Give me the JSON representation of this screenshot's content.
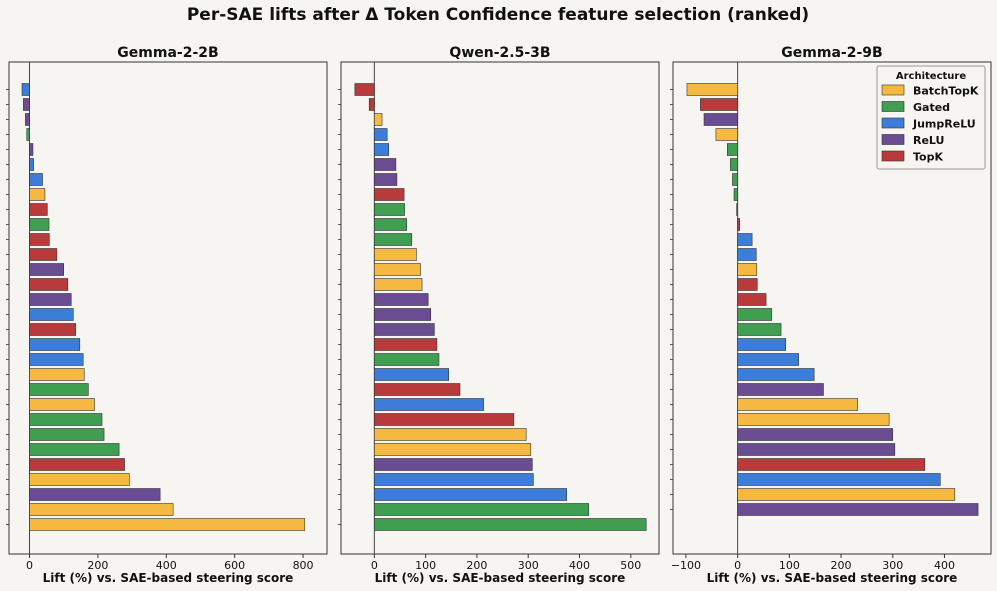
{
  "title": "Per-SAE lifts after Δ Token Confidence feature selection (ranked)",
  "colors": {
    "BatchTopK": "#f5b942",
    "Gated": "#3f9e4f",
    "JumpReLU": "#3b7dd8",
    "ReLU": "#6a4c93",
    "TopK": "#b83a3a"
  },
  "legend": {
    "title": "Architecture",
    "location": "top-right",
    "entries": [
      "BatchTopK",
      "Gated",
      "JumpReLU",
      "ReLU",
      "TopK"
    ]
  },
  "chart_data": [
    {
      "type": "bar",
      "orientation": "horizontal",
      "title": "Gemma-2-2B",
      "xlabel": "Lift (%) vs. SAE-based steering score",
      "xlim": [
        -60,
        870
      ],
      "xticks": [
        0,
        200,
        400,
        600,
        800
      ],
      "bars": [
        {
          "arch": "JumpReLU",
          "value": -22
        },
        {
          "arch": "ReLU",
          "value": -18
        },
        {
          "arch": "ReLU",
          "value": -12
        },
        {
          "arch": "Gated",
          "value": -8
        },
        {
          "arch": "ReLU",
          "value": 10
        },
        {
          "arch": "JumpReLU",
          "value": 12
        },
        {
          "arch": "JumpReLU",
          "value": 38
        },
        {
          "arch": "BatchTopK",
          "value": 45
        },
        {
          "arch": "TopK",
          "value": 52
        },
        {
          "arch": "Gated",
          "value": 57
        },
        {
          "arch": "TopK",
          "value": 58
        },
        {
          "arch": "TopK",
          "value": 80
        },
        {
          "arch": "ReLU",
          "value": 100
        },
        {
          "arch": "TopK",
          "value": 112
        },
        {
          "arch": "ReLU",
          "value": 122
        },
        {
          "arch": "JumpReLU",
          "value": 128
        },
        {
          "arch": "TopK",
          "value": 135
        },
        {
          "arch": "JumpReLU",
          "value": 147
        },
        {
          "arch": "JumpReLU",
          "value": 157
        },
        {
          "arch": "BatchTopK",
          "value": 160
        },
        {
          "arch": "Gated",
          "value": 172
        },
        {
          "arch": "BatchTopK",
          "value": 190
        },
        {
          "arch": "Gated",
          "value": 212
        },
        {
          "arch": "Gated",
          "value": 218
        },
        {
          "arch": "Gated",
          "value": 262
        },
        {
          "arch": "TopK",
          "value": 278
        },
        {
          "arch": "BatchTopK",
          "value": 292
        },
        {
          "arch": "ReLU",
          "value": 382
        },
        {
          "arch": "BatchTopK",
          "value": 420
        },
        {
          "arch": "BatchTopK",
          "value": 805
        }
      ]
    },
    {
      "type": "bar",
      "orientation": "horizontal",
      "title": "Qwen-2.5-3B",
      "xlabel": "Lift (%) vs. SAE-based steering score",
      "xlim": [
        -65,
        555
      ],
      "xticks": [
        0,
        100,
        200,
        300,
        400,
        500
      ],
      "bars": [
        {
          "arch": "TopK",
          "value": -38
        },
        {
          "arch": "TopK",
          "value": -10
        },
        {
          "arch": "BatchTopK",
          "value": 15
        },
        {
          "arch": "JumpReLU",
          "value": 25
        },
        {
          "arch": "JumpReLU",
          "value": 28
        },
        {
          "arch": "ReLU",
          "value": 42
        },
        {
          "arch": "ReLU",
          "value": 44
        },
        {
          "arch": "TopK",
          "value": 58
        },
        {
          "arch": "Gated",
          "value": 59
        },
        {
          "arch": "Gated",
          "value": 63
        },
        {
          "arch": "Gated",
          "value": 73
        },
        {
          "arch": "BatchTopK",
          "value": 82
        },
        {
          "arch": "BatchTopK",
          "value": 90
        },
        {
          "arch": "BatchTopK",
          "value": 93
        },
        {
          "arch": "ReLU",
          "value": 105
        },
        {
          "arch": "ReLU",
          "value": 110
        },
        {
          "arch": "ReLU",
          "value": 117
        },
        {
          "arch": "TopK",
          "value": 122
        },
        {
          "arch": "Gated",
          "value": 126
        },
        {
          "arch": "JumpReLU",
          "value": 145
        },
        {
          "arch": "TopK",
          "value": 167
        },
        {
          "arch": "JumpReLU",
          "value": 213
        },
        {
          "arch": "TopK",
          "value": 272
        },
        {
          "arch": "BatchTopK",
          "value": 296
        },
        {
          "arch": "BatchTopK",
          "value": 305
        },
        {
          "arch": "ReLU",
          "value": 308
        },
        {
          "arch": "JumpReLU",
          "value": 310
        },
        {
          "arch": "JumpReLU",
          "value": 375
        },
        {
          "arch": "Gated",
          "value": 418
        },
        {
          "arch": "Gated",
          "value": 530
        }
      ]
    },
    {
      "type": "bar",
      "orientation": "horizontal",
      "title": "Gemma-2-9B",
      "xlabel": "Lift (%) vs. SAE-based steering score",
      "xlim": [
        -125,
        490
      ],
      "xticks": [
        -100,
        0,
        100,
        200,
        300,
        400
      ],
      "bars": [
        {
          "arch": "BatchTopK",
          "value": -98
        },
        {
          "arch": "TopK",
          "value": -72
        },
        {
          "arch": "ReLU",
          "value": -65
        },
        {
          "arch": "BatchTopK",
          "value": -42
        },
        {
          "arch": "Gated",
          "value": -20
        },
        {
          "arch": "Gated",
          "value": -14
        },
        {
          "arch": "Gated",
          "value": -10
        },
        {
          "arch": "Gated",
          "value": -7
        },
        {
          "arch": "Gated",
          "value": -2
        },
        {
          "arch": "TopK",
          "value": 4
        },
        {
          "arch": "JumpReLU",
          "value": 28
        },
        {
          "arch": "JumpReLU",
          "value": 36
        },
        {
          "arch": "BatchTopK",
          "value": 37
        },
        {
          "arch": "TopK",
          "value": 38
        },
        {
          "arch": "TopK",
          "value": 55
        },
        {
          "arch": "Gated",
          "value": 66
        },
        {
          "arch": "Gated",
          "value": 84
        },
        {
          "arch": "JumpReLU",
          "value": 93
        },
        {
          "arch": "JumpReLU",
          "value": 118
        },
        {
          "arch": "JumpReLU",
          "value": 148
        },
        {
          "arch": "ReLU",
          "value": 166
        },
        {
          "arch": "BatchTopK",
          "value": 232
        },
        {
          "arch": "BatchTopK",
          "value": 293
        },
        {
          "arch": "ReLU",
          "value": 300
        },
        {
          "arch": "ReLU",
          "value": 304
        },
        {
          "arch": "TopK",
          "value": 362
        },
        {
          "arch": "JumpReLU",
          "value": 392
        },
        {
          "arch": "BatchTopK",
          "value": 420
        },
        {
          "arch": "ReLU",
          "value": 465
        }
      ]
    }
  ]
}
